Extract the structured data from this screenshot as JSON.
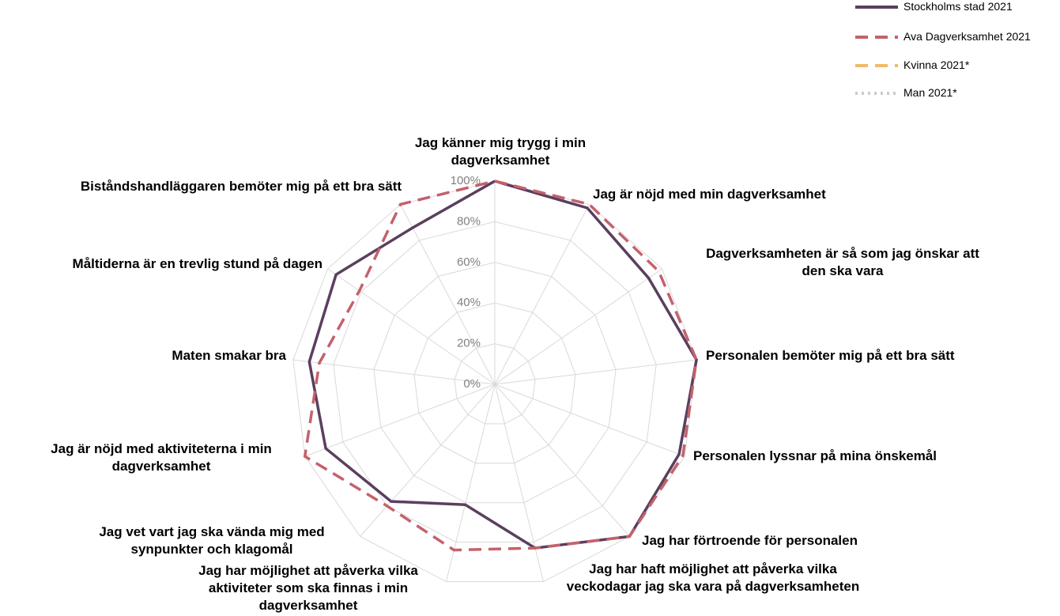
{
  "chart_data": {
    "type": "radar",
    "categories": [
      "Jag känner mig trygg i min dagverksamhet",
      "Jag är nöjd med min dagverksamhet",
      "Dagverksamheten är så som jag önskar att den ska vara",
      "Personalen bemöter mig på ett bra sätt",
      "Personalen lyssnar på mina önskemål",
      "Jag har förtroende för personalen",
      "Jag har haft möjlighet att påverka vilka veckodagar jag ska vara på dagverksamheten",
      "Jag har möjlighet att påverka vilka aktiviteter som ska finnas i min dagverksamhet",
      "Jag vet vart jag ska vända mig med synpunkter och klagomål",
      "Jag är nöjd med aktiviteterna i min dagverksamhet",
      "Maten smakar bra",
      "Måltiderna är en trevlig stund på dagen",
      "Biståndshandläggaren bemöter mig på ett bra sätt"
    ],
    "series": [
      {
        "name": "Stockholms stad 2021",
        "color": "#5b3f5e",
        "dash": "solid",
        "values": [
          100,
          98,
          92,
          100,
          97,
          100,
          83,
          61,
          77,
          89,
          92,
          95,
          87
        ]
      },
      {
        "name": "Ava Dagverksamhet 2021",
        "color": "#c4616b",
        "dash": "dashed",
        "values": [
          100,
          100,
          98,
          100,
          99,
          100,
          83,
          84,
          80,
          100,
          87,
          81,
          100
        ]
      },
      {
        "name": "Kvinna 2021*",
        "color": "#f0bb6a",
        "dash": "dashed",
        "values": [
          null,
          null,
          null,
          null,
          null,
          null,
          null,
          null,
          null,
          null,
          null,
          null,
          null
        ]
      },
      {
        "name": "Man 2021*",
        "color": "#cccccc",
        "dash": "dotted",
        "values": [
          null,
          null,
          null,
          null,
          null,
          null,
          null,
          null,
          null,
          null,
          null,
          null,
          null
        ]
      }
    ],
    "ylim": [
      0,
      100
    ],
    "yticks": [
      {
        "value": 0,
        "label": "0%"
      },
      {
        "value": 20,
        "label": "20%"
      },
      {
        "value": 40,
        "label": "40%"
      },
      {
        "value": 60,
        "label": "60%"
      },
      {
        "value": 80,
        "label": "80%"
      },
      {
        "value": 100,
        "label": "100%"
      }
    ],
    "grid": true,
    "legend": "top-right"
  }
}
